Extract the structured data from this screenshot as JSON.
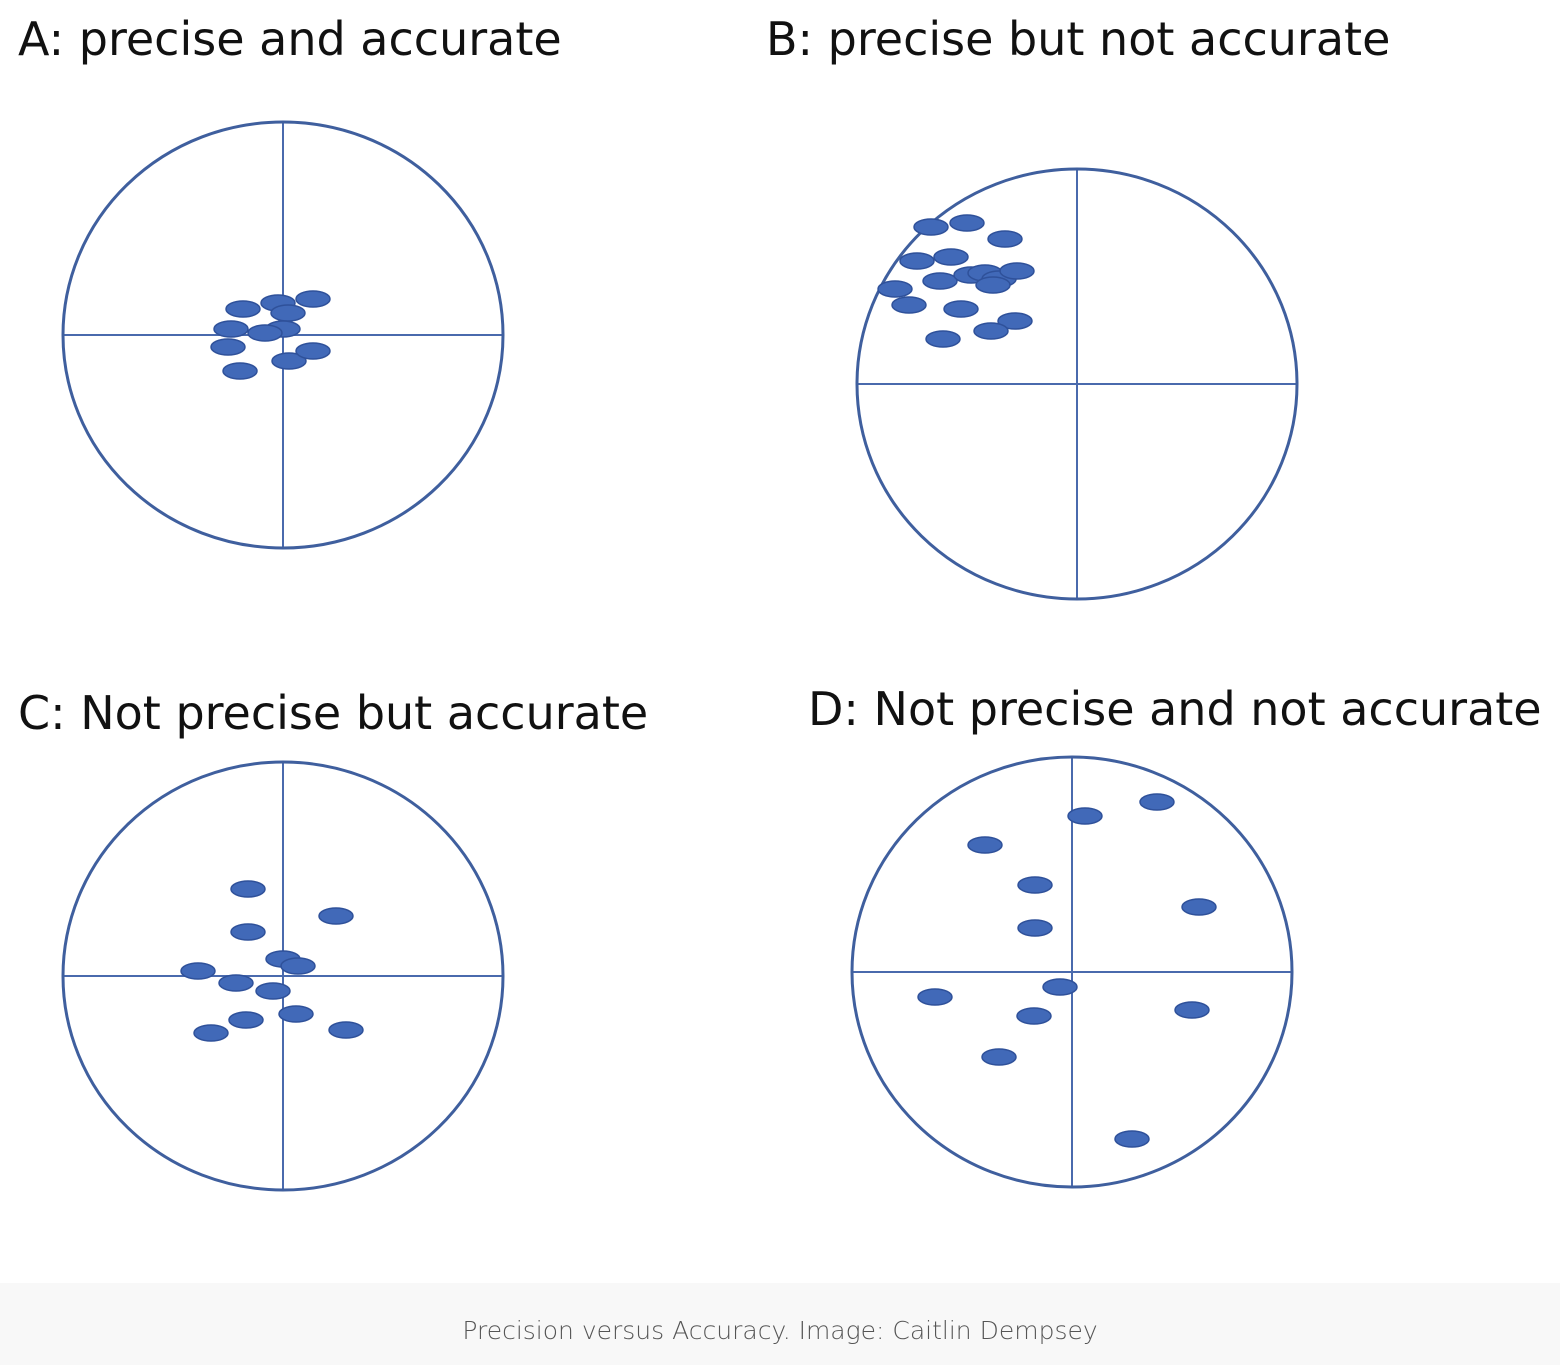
{
  "figure": {
    "colors": {
      "ring": "#3f5f9e",
      "crosshair": "#4a6aad",
      "dot_fill": "#4169b8",
      "dot_stroke": "#2f519a",
      "caption_bg": "#f8f8f8",
      "caption_text": "#555555"
    },
    "panels": [
      {
        "id": "a",
        "title": "A: precise and accurate",
        "hits": [
          [
            -40,
            26
          ],
          [
            -5,
            32
          ],
          [
            5,
            22
          ],
          [
            30,
            36
          ],
          [
            -52,
            6
          ],
          [
            0,
            6
          ],
          [
            -18,
            2
          ],
          [
            -55,
            -12
          ],
          [
            6,
            -26
          ],
          [
            30,
            -16
          ],
          [
            -43,
            -36
          ]
        ]
      },
      {
        "id": "b",
        "title": "B: precise but not accurate",
        "hits": [
          [
            -146,
            157
          ],
          [
            -110,
            161
          ],
          [
            -72,
            145
          ],
          [
            -160,
            123
          ],
          [
            -126,
            127
          ],
          [
            -137,
            103
          ],
          [
            -106,
            109
          ],
          [
            -92,
            111
          ],
          [
            -78,
            105
          ],
          [
            -60,
            113
          ],
          [
            -84,
            99
          ],
          [
            -182,
            95
          ],
          [
            -168,
            79
          ],
          [
            -116,
            75
          ],
          [
            -62,
            63
          ],
          [
            -86,
            53
          ],
          [
            -134,
            45
          ]
        ]
      },
      {
        "id": "c",
        "title": "C: Not precise but accurate",
        "hits": [
          [
            -35,
            87
          ],
          [
            53,
            60
          ],
          [
            -35,
            44
          ],
          [
            0,
            17
          ],
          [
            15,
            10
          ],
          [
            -85,
            5
          ],
          [
            -47,
            -7
          ],
          [
            -10,
            -15
          ],
          [
            -37,
            -44
          ],
          [
            13,
            -38
          ],
          [
            63,
            -54
          ],
          [
            -72,
            -57
          ]
        ]
      },
      {
        "id": "d",
        "title": "D: Not precise and not accurate",
        "hits": [
          [
            85,
            170
          ],
          [
            13,
            156
          ],
          [
            -87,
            127
          ],
          [
            -37,
            87
          ],
          [
            127,
            65
          ],
          [
            -37,
            44
          ],
          [
            -12,
            -15
          ],
          [
            -137,
            -25
          ],
          [
            -38,
            -44
          ],
          [
            120,
            -38
          ],
          [
            -73,
            -85
          ],
          [
            60,
            -167
          ]
        ]
      }
    ]
  },
  "caption": "Precision versus Accuracy. Image: Caitlin Dempsey"
}
